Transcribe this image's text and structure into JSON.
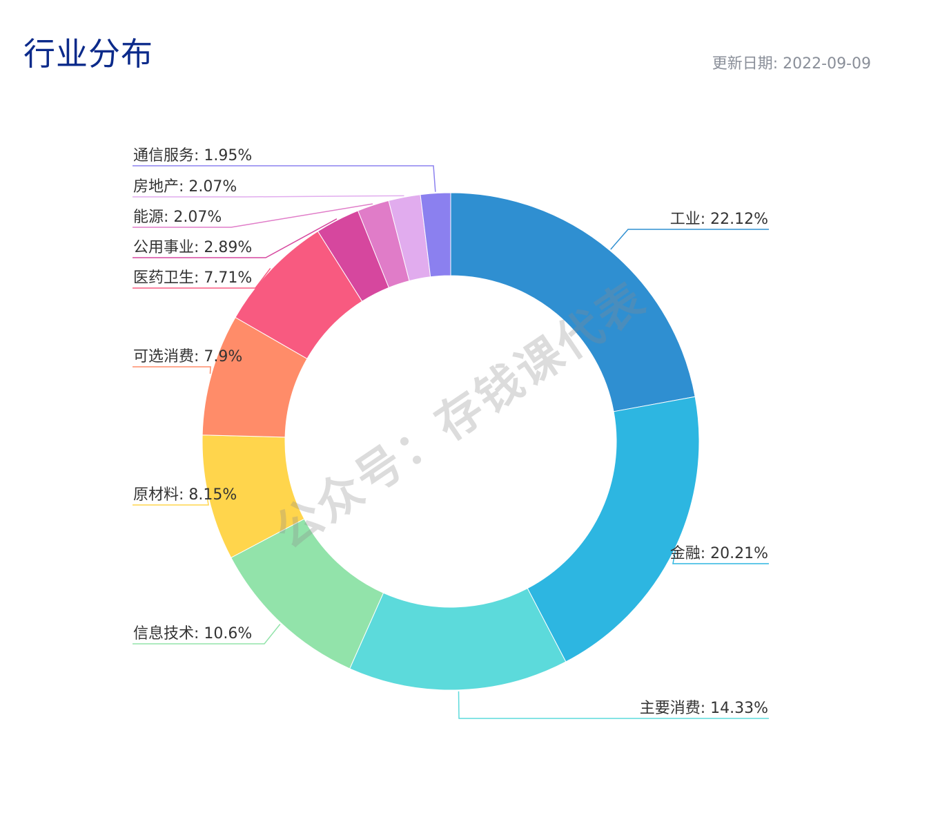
{
  "header": {
    "title": "行业分布",
    "update_label": "更新日期: ",
    "update_date": "2022-09-09"
  },
  "watermark": "公众号：存钱课代表",
  "chart_data": {
    "type": "pie",
    "style": "donut",
    "start_angle": "12 o'clock, clockwise",
    "label_separator": ": ",
    "slices": [
      {
        "name": "工业",
        "value": 22.12,
        "label": "22.12%",
        "color": "#2f8fd1"
      },
      {
        "name": "金融",
        "value": 20.21,
        "label": "20.21%",
        "color": "#2db6e1"
      },
      {
        "name": "主要消费",
        "value": 14.33,
        "label": "14.33%",
        "color": "#5cdadb"
      },
      {
        "name": "信息技术",
        "value": 10.6,
        "label": "10.6%",
        "color": "#92e3aa"
      },
      {
        "name": "原材料",
        "value": 8.15,
        "label": "8.15%",
        "color": "#ffd54c"
      },
      {
        "name": "可选消费",
        "value": 7.9,
        "label": "7.9%",
        "color": "#ff8c69"
      },
      {
        "name": "医药卫生",
        "value": 7.71,
        "label": "7.71%",
        "color": "#f85a80"
      },
      {
        "name": "公用事业",
        "value": 2.89,
        "label": "2.89%",
        "color": "#d6479e"
      },
      {
        "name": "能源",
        "value": 2.07,
        "label": "2.07%",
        "color": "#e07cc8"
      },
      {
        "name": "房地产",
        "value": 2.07,
        "label": "2.07%",
        "color": "#e1acee"
      },
      {
        "name": "通信服务",
        "value": 1.95,
        "label": "1.95%",
        "color": "#8b80ef"
      }
    ]
  }
}
